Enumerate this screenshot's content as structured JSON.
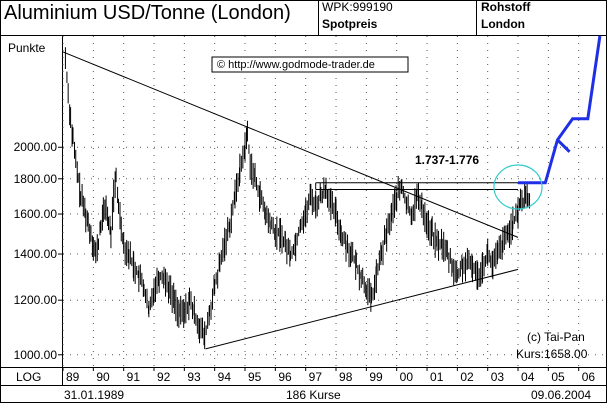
{
  "header": {
    "title": "Aluminium USD/Tonne (London)",
    "wpk": "WPK:999190",
    "price_type": "Spotpreis",
    "category": "Rohstoff",
    "market": "London"
  },
  "chart_data": {
    "type": "bar",
    "title": "Aluminium USD/Tonne (London)",
    "ylabel": "Punkte",
    "y_scale": "log",
    "ylim": [
      960,
      2900
    ],
    "y_ticks": [
      "1000.00",
      "1200.00",
      "1400.00",
      "1600.00",
      "1800.00",
      "2000.00"
    ],
    "x_ticks": [
      "89",
      "90",
      "91",
      "92",
      "93",
      "94",
      "95",
      "96",
      "97",
      "98",
      "99",
      "00",
      "01",
      "02",
      "03",
      "04",
      "05",
      "06"
    ],
    "xlim": [
      1989.0,
      2006.9
    ],
    "x_scale_label": "LOG",
    "start_date": "31.01.1989",
    "end_date": "09.06.2004",
    "bar_count": "186 Kurse",
    "watermark": "© http://www.godmode-trader.de",
    "copyright": "(c) Tai-Pan",
    "last_price": "Kurs:1658.00",
    "range_label": "1.737-1.776",
    "series": [
      {
        "type": "price",
        "x": [
          1989.08,
          1989.17,
          1989.25,
          1989.33,
          1989.42,
          1989.5,
          1989.58,
          1989.67,
          1989.75,
          1989.83,
          1989.92,
          1990.0,
          1990.08,
          1990.17,
          1990.25,
          1990.33,
          1990.42,
          1990.5,
          1990.58,
          1990.67,
          1990.75,
          1990.83,
          1990.92,
          1991.0,
          1991.17,
          1991.33,
          1991.5,
          1991.67,
          1991.83,
          1992.0,
          1992.17,
          1992.33,
          1992.5,
          1992.67,
          1992.83,
          1993.0,
          1993.17,
          1993.33,
          1993.5,
          1993.67,
          1993.83,
          1994.0,
          1994.17,
          1994.33,
          1994.5,
          1994.67,
          1994.83,
          1995.0,
          1995.08,
          1995.17,
          1995.33,
          1995.5,
          1995.67,
          1995.83,
          1996.0,
          1996.17,
          1996.33,
          1996.5,
          1996.67,
          1996.83,
          1997.0,
          1997.17,
          1997.33,
          1997.5,
          1997.67,
          1997.83,
          1998.0,
          1998.17,
          1998.33,
          1998.5,
          1998.67,
          1998.83,
          1999.0,
          1999.17,
          1999.33,
          1999.5,
          1999.67,
          1999.83,
          2000.0,
          2000.17,
          2000.33,
          2000.5,
          2000.67,
          2000.83,
          2001.0,
          2001.17,
          2001.33,
          2001.5,
          2001.67,
          2001.83,
          2002.0,
          2002.17,
          2002.33,
          2002.5,
          2002.67,
          2002.83,
          2003.0,
          2003.17,
          2003.33,
          2003.5,
          2003.67,
          2003.83,
          2004.0,
          2004.08,
          2004.17,
          2004.25,
          2004.33,
          2004.42
        ],
        "y": [
          2700,
          2400,
          2200,
          2050,
          1900,
          1800,
          1700,
          1650,
          1600,
          1550,
          1500,
          1450,
          1400,
          1450,
          1550,
          1600,
          1650,
          1550,
          1500,
          1700,
          1800,
          1650,
          1550,
          1450,
          1400,
          1350,
          1300,
          1250,
          1150,
          1250,
          1300,
          1300,
          1250,
          1200,
          1150,
          1150,
          1200,
          1150,
          1100,
          1060,
          1150,
          1250,
          1350,
          1450,
          1550,
          1700,
          1850,
          2000,
          2100,
          1900,
          1800,
          1700,
          1600,
          1550,
          1500,
          1500,
          1450,
          1400,
          1450,
          1550,
          1600,
          1700,
          1650,
          1700,
          1750,
          1650,
          1600,
          1500,
          1450,
          1400,
          1350,
          1300,
          1250,
          1200,
          1300,
          1400,
          1500,
          1600,
          1700,
          1750,
          1650,
          1600,
          1700,
          1650,
          1550,
          1500,
          1450,
          1450,
          1400,
          1350,
          1300,
          1350,
          1350,
          1350,
          1300,
          1350,
          1400,
          1350,
          1400,
          1450,
          1500,
          1550,
          1600,
          1700,
          1650,
          1720,
          1680,
          1658
        ]
      },
      {
        "type": "projection",
        "x": [
          2004.0,
          2004.5,
          2004.9,
          2005.3,
          2005.8,
          2006.05,
          2006.3,
          2006.7
        ],
        "y": [
          1776,
          1776,
          1776,
          2050,
          2200,
          2200,
          2200,
          2900
        ]
      },
      {
        "type": "projection_branch",
        "x": [
          2005.3,
          2005.7
        ],
        "y": [
          2050,
          1970
        ]
      },
      {
        "type": "upper_trendline",
        "x": [
          1989.0,
          2004.0
        ],
        "y": [
          2750,
          1480
        ]
      },
      {
        "type": "lower_trendline",
        "x": [
          1993.7,
          2004.0
        ],
        "y": [
          1020,
          1330
        ]
      },
      {
        "type": "resistance_zone",
        "x": [
          1997.33,
          2004.0
        ],
        "y": [
          1737,
          1776
        ]
      }
    ]
  }
}
